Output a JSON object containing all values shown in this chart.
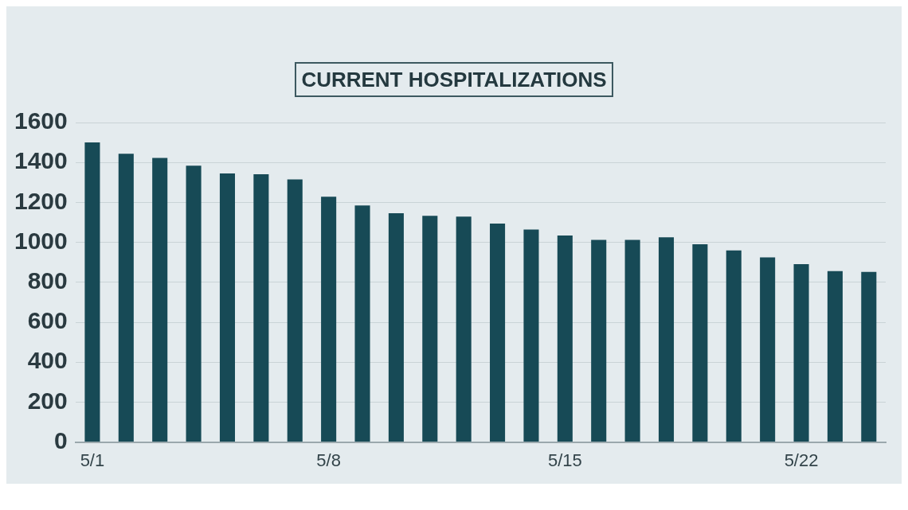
{
  "chart_data": {
    "type": "bar",
    "title": "CURRENT HOSPITALIZATIONS",
    "categories": [
      "5/1",
      null,
      null,
      null,
      null,
      null,
      null,
      "5/8",
      null,
      null,
      null,
      null,
      null,
      null,
      "5/15",
      null,
      null,
      null,
      null,
      null,
      null,
      "5/22",
      null,
      null
    ],
    "values": [
      1500,
      1444,
      1423,
      1384,
      1345,
      1341,
      1315,
      1228,
      1185,
      1146,
      1133,
      1129,
      1094,
      1064,
      1034,
      1012,
      1012,
      1025,
      990,
      960,
      925,
      891,
      856,
      852
    ],
    "color": "#174a56",
    "ylim": [
      0,
      1600
    ],
    "yticks": [
      0,
      200,
      400,
      600,
      800,
      1000,
      1200,
      1400,
      1600
    ],
    "grid": "y"
  }
}
